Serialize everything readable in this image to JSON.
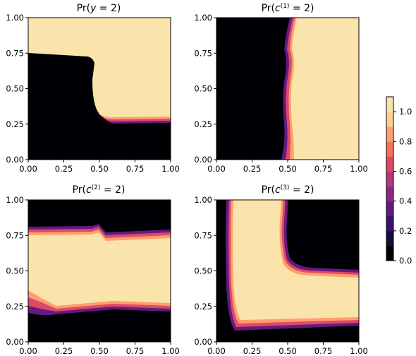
{
  "chart_data": {
    "type": "heatmap",
    "colormap": "magma",
    "colorbar": {
      "ticks": [
        "0.0",
        "0.2",
        "0.4",
        "0.6",
        "0.8",
        "1.0"
      ],
      "levels": [
        0.0,
        0.1,
        0.2,
        0.3,
        0.4,
        0.5,
        0.6,
        0.7,
        0.8,
        0.9,
        1.0
      ],
      "colors": [
        "#000004",
        "#150e38",
        "#3b0f70",
        "#641a80",
        "#8c2981",
        "#b73779",
        "#de4968",
        "#f7705c",
        "#fe9f6d",
        "#fecf92",
        "#fbe4ab"
      ]
    },
    "xlim": [
      0,
      1
    ],
    "ylim": [
      0,
      1
    ],
    "xticks": [
      "0.00",
      "0.25",
      "0.50",
      "0.75",
      "1.00"
    ],
    "yticks": [
      "0.00",
      "0.25",
      "0.50",
      "0.75",
      "1.00"
    ],
    "panels": [
      {
        "title_pre": "Pr(",
        "title_var": "y",
        "title_sup": "",
        "title_post": " = 2)",
        "region": "y=2 when y>0.76 or (x>0.52 and y>0.27)",
        "boundary": [
          [
            0,
            0.77
          ],
          [
            0.42,
            0.76
          ],
          [
            0.5,
            0.73
          ],
          [
            0.47,
            0.52
          ],
          [
            0.55,
            0.28
          ],
          [
            0.58,
            0.26
          ],
          [
            1,
            0.26
          ]
        ]
      },
      {
        "title_pre": "Pr(",
        "title_var": "c",
        "title_sup": "(1)",
        "title_post": " = 2)",
        "region": "right of x=0.52 boundary",
        "boundary": [
          [
            0.55,
            1.0
          ],
          [
            0.49,
            0.85
          ],
          [
            0.52,
            0.7
          ],
          [
            0.48,
            0.55
          ],
          [
            0.49,
            0.35
          ],
          [
            0.5,
            0.15
          ],
          [
            0.52,
            0.0
          ]
        ]
      },
      {
        "title_pre": "Pr(",
        "title_var": "c",
        "title_sup": "(2)",
        "title_post": " = 2)",
        "region": "horizontal band between y=0.26 and y=0.76",
        "upper": [
          [
            0,
            0.77
          ],
          [
            0.45,
            0.775
          ],
          [
            0.52,
            0.73
          ],
          [
            1,
            0.76
          ]
        ],
        "lower": [
          [
            0,
            0.3
          ],
          [
            0.2,
            0.245
          ],
          [
            0.5,
            0.25
          ],
          [
            1,
            0.255
          ]
        ]
      },
      {
        "title_pre": "Pr(",
        "title_var": "c",
        "title_sup": "(3)",
        "title_post": " = 2)",
        "region": "L-shaped band: left strip x 0.12-0.48 and bottom strip y 0.1-0.5",
        "outer": [
          [
            0.1,
            1.0
          ],
          [
            0.09,
            0.6
          ],
          [
            0.12,
            0.2
          ],
          [
            0.16,
            0.1
          ],
          [
            1,
            0.1
          ]
        ],
        "inner": [
          [
            0.5,
            1.0
          ],
          [
            0.48,
            0.75
          ],
          [
            0.52,
            0.55
          ],
          [
            0.62,
            0.5
          ],
          [
            1,
            0.49
          ]
        ]
      }
    ]
  }
}
